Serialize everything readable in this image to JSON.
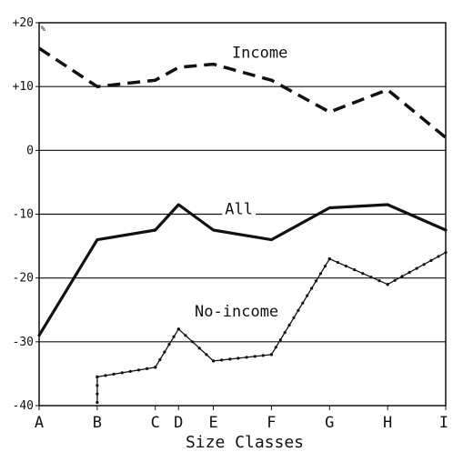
{
  "chart_data": {
    "type": "line",
    "xlabel": "Size Classes",
    "ylabel": "",
    "title": "",
    "corner_mark": "%",
    "categories": [
      "A",
      "B",
      "C",
      "D",
      "E",
      "F",
      "G",
      "H",
      "I"
    ],
    "category_positions": [
      0,
      2.5,
      5,
      6,
      7.5,
      10,
      12.5,
      15,
      17.5
    ],
    "ylim": [
      -40,
      20
    ],
    "y_ticks": [
      20,
      10,
      0,
      -10,
      -20,
      -30,
      -40
    ],
    "y_tick_labels": [
      "+20",
      "+10",
      "0",
      "-10",
      "-20",
      "-30",
      "-40"
    ],
    "gridlines": [
      10,
      0,
      -10,
      -20,
      -30
    ],
    "series": [
      {
        "name": "Income",
        "style": "dashed",
        "points": [
          [
            0,
            16
          ],
          [
            2.5,
            10
          ],
          [
            5,
            11
          ],
          [
            6,
            13
          ],
          [
            7.5,
            13.5
          ],
          [
            10,
            11
          ],
          [
            12.5,
            6
          ],
          [
            15,
            9.5
          ],
          [
            17.5,
            2
          ]
        ]
      },
      {
        "name": "All",
        "style": "solid",
        "points": [
          [
            0,
            -29
          ],
          [
            2.5,
            -14
          ],
          [
            5,
            -12.5
          ],
          [
            6,
            -8.5
          ],
          [
            7.5,
            -12.5
          ],
          [
            10,
            -14
          ],
          [
            12.5,
            -9
          ],
          [
            15,
            -8.5
          ],
          [
            17.5,
            -12.5
          ]
        ]
      },
      {
        "name": "No-income",
        "style": "dotted-thin",
        "points": [
          [
            2.5,
            -39.5
          ],
          [
            2.5,
            -35.5
          ],
          [
            5,
            -34
          ],
          [
            6,
            -28
          ],
          [
            7.5,
            -33
          ],
          [
            10,
            -32
          ],
          [
            12.5,
            -17
          ],
          [
            15,
            -21
          ],
          [
            17.5,
            -16
          ]
        ]
      }
    ]
  }
}
